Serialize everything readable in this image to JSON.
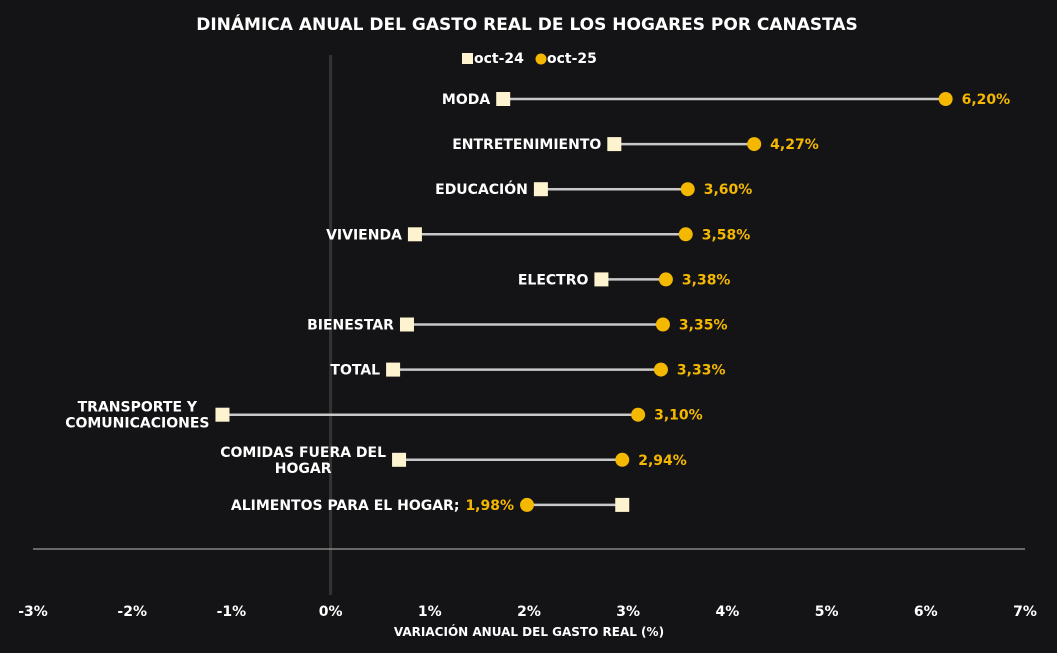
{
  "chart_data": {
    "type": "dumbbell",
    "title": "DINÁMICA ANUAL DEL GASTO REAL DE LOS HOGARES POR CANASTAS",
    "xlabel": "VARIACIÓN ANUAL DEL GASTO REAL (%)",
    "ylabel": "",
    "xlim": [
      -3,
      7
    ],
    "xticks": [
      "-3%",
      "-2%",
      "-1%",
      "0%",
      "1%",
      "2%",
      "3%",
      "4%",
      "5%",
      "6%",
      "7%"
    ],
    "xtick_values": [
      -3,
      -2,
      -1,
      0,
      1,
      2,
      3,
      4,
      5,
      6,
      7
    ],
    "legend_position": "top-center",
    "categories": [
      "MODA",
      "ENTRETENIMIENTO",
      "EDUCACIÓN",
      "VIVIENDA",
      "ELECTRO",
      "BIENESTAR",
      "TOTAL",
      "TRANSPORTE Y COMUNICACIONES",
      "COMIDAS FUERA DEL HOGAR",
      "ALIMENTOS PARA EL HOGAR;"
    ],
    "series": [
      {
        "name": "oct-24",
        "marker": "square",
        "color": "#fdf3cf",
        "values": [
          1.74,
          2.86,
          2.12,
          0.85,
          2.73,
          0.77,
          0.63,
          -1.09,
          0.69,
          2.94
        ]
      },
      {
        "name": "oct-25",
        "marker": "circle",
        "color": "#f5b800",
        "values": [
          6.2,
          4.27,
          3.6,
          3.58,
          3.38,
          3.35,
          3.33,
          3.1,
          2.94,
          1.98
        ],
        "data_labels": [
          "6,20%",
          "4,27%",
          "3,60%",
          "3,58%",
          "3,38%",
          "3,35%",
          "3,33%",
          "3,10%",
          "2,94%",
          "1,98%"
        ]
      }
    ],
    "colors": {
      "background": "#141416",
      "connector": "#c8c8c8",
      "text": "#ffffff",
      "axis": "#9a9a9a",
      "zero_line": "#333333"
    }
  }
}
